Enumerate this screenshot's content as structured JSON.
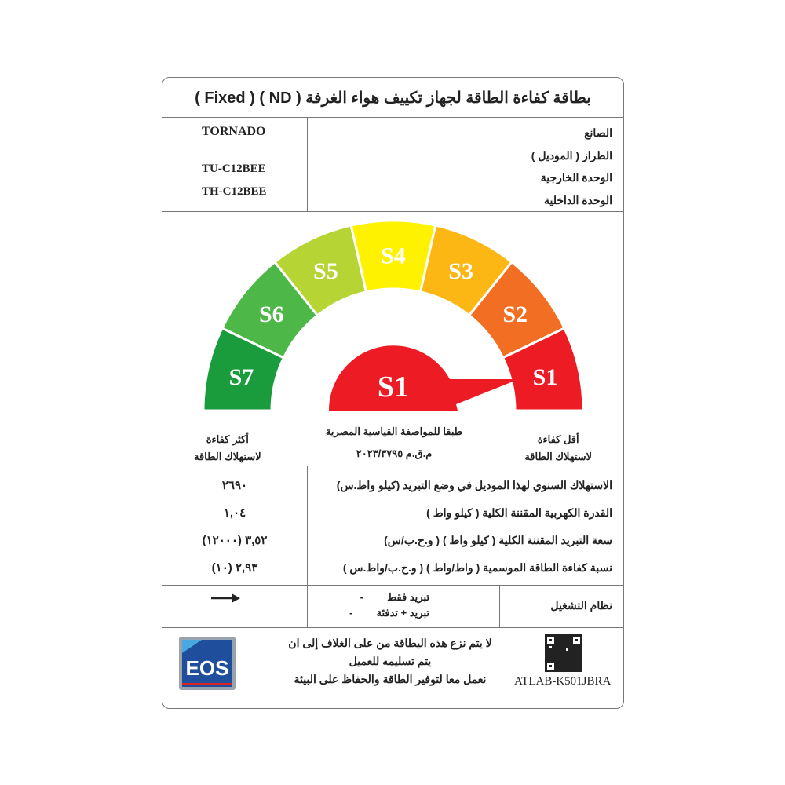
{
  "title": "بطاقة كفاءة الطاقة لجهاز تكييف هواء الغرفة ( ND ) ( Fixed )",
  "info": {
    "labels": [
      "الصانع",
      "الطراز ( الموديل )",
      "الوحدة الخارجية",
      "الوحدة الداخلية"
    ],
    "manufacturer": "TORNADO",
    "outdoor_unit": "TU-C12BEE",
    "indoor_unit": "TH-C12BEE"
  },
  "gauge": {
    "classes": [
      {
        "label": "S7",
        "color": "#1a9b3c"
      },
      {
        "label": "S6",
        "color": "#4db748"
      },
      {
        "label": "S5",
        "color": "#b6d433"
      },
      {
        "label": "S4",
        "color": "#fff200"
      },
      {
        "label": "S3",
        "color": "#fdb714"
      },
      {
        "label": "S2",
        "color": "#f26e22"
      },
      {
        "label": "S1",
        "color": "#ed1c24"
      }
    ],
    "rating": "S1",
    "rating_color": "#ed1c24",
    "most_efficient": [
      "أكثر كفاءة",
      "لاستهلاك الطاقة"
    ],
    "least_efficient": [
      "أقل كفاءة",
      "لاستهلاك الطاقة"
    ],
    "standard": [
      "طبقا للمواصفة القياسية المصرية",
      "م.ق.م ٢٠٢٣/٣٧٩٥"
    ]
  },
  "specs": [
    {
      "label": "الاستهلاك السنوي لهذا الموديل في وضع التبريد (كيلو واط.س)",
      "value": "٢٦٩٠"
    },
    {
      "label": "القدرة الكهربية المقننة الكلية ( كيلو واط )",
      "value": "١,٠٤"
    },
    {
      "label": "سعة التبريد المقننة الكلية ( كيلو واط ) ( و.ح.ب/س)",
      "value": "(١٢٠٠٠) ٣,٥٢"
    },
    {
      "label": "نسبة كفاءة الطاقة الموسمية ( واط/واط ) ( و.ح.ب/واط.س )",
      "value": "(١٠) ٢,٩٣"
    }
  ],
  "operation": {
    "label": "نظام التشغيل",
    "options": [
      "تبريد فقط",
      "تبريد + تدفئة"
    ],
    "selected_icon": "arrow-right-icon"
  },
  "footer": {
    "notice": [
      "لا يتم نزع هذه البطاقة من على الغلاف إلى ان",
      "يتم تسليمه للعميل",
      "نعمل معا لتوفير الطاقة والحفاظ على البيئة"
    ],
    "code": "ATLAB-K501JBRA",
    "logo": "EOS"
  }
}
